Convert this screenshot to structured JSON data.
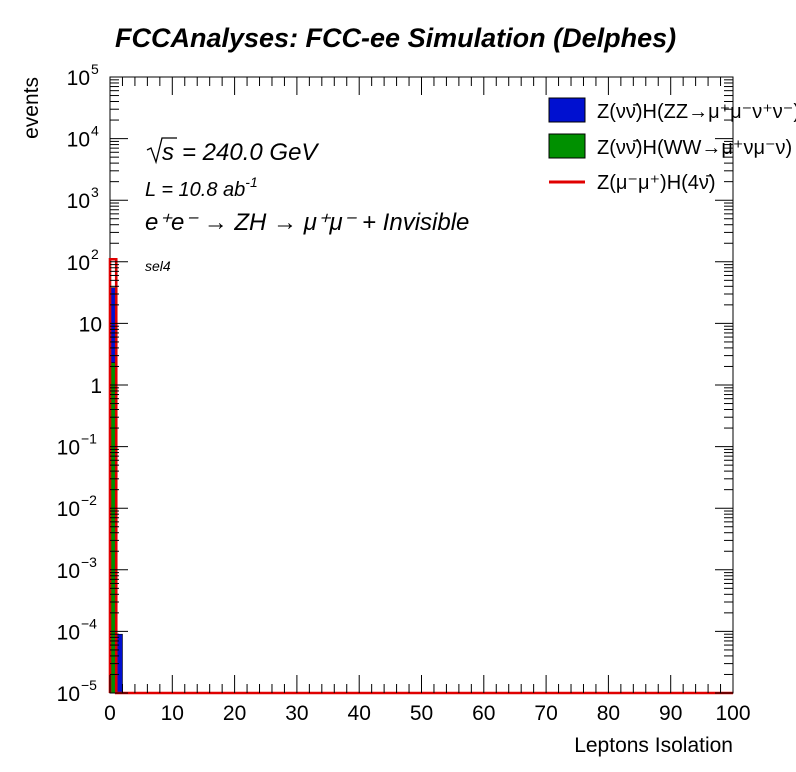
{
  "chart_data": {
    "type": "bar",
    "title": "FCCAnalyses: FCC-ee Simulation (Delphes)",
    "xlabel": "Leptons Isolation",
    "ylabel": "events",
    "xlim": [
      0,
      100
    ],
    "ylim": [
      1e-05,
      100000.0
    ],
    "yscale": "log",
    "x_ticks": [
      "0",
      "10",
      "20",
      "30",
      "40",
      "50",
      "60",
      "70",
      "80",
      "90",
      "100"
    ],
    "y_ticks": [
      {
        "value": 100000.0,
        "base": "10",
        "exp": "5"
      },
      {
        "value": 10000.0,
        "base": "10",
        "exp": "4"
      },
      {
        "value": 1000.0,
        "base": "10",
        "exp": "3"
      },
      {
        "value": 100.0,
        "base": "10",
        "exp": "2"
      },
      {
        "value": 10,
        "base": "10",
        "exp": ""
      },
      {
        "value": 1,
        "base": "1",
        "exp": ""
      },
      {
        "value": 0.1,
        "base": "10",
        "exp": "−1"
      },
      {
        "value": 0.01,
        "base": "10",
        "exp": "−2"
      },
      {
        "value": 0.001,
        "base": "10",
        "exp": "−3"
      },
      {
        "value": 0.0001,
        "base": "10",
        "exp": "−4"
      },
      {
        "value": 1e-05,
        "base": "10",
        "exp": "−5"
      }
    ],
    "series": [
      {
        "name": "Z(νν̄)H(ZZ→μ⁺μ⁻ν⁺ν⁻)",
        "style": "stack-fill",
        "color": "#0010d0",
        "bins": [
          {
            "x0": 0,
            "x1": 1,
            "y": 38
          },
          {
            "x0": 1,
            "x1": 2,
            "y": 9e-05
          }
        ]
      },
      {
        "name": "Z(νν̄)H(WW→μ⁺νμ⁻ν)",
        "style": "stack-fill",
        "color": "#009000",
        "bins": [
          {
            "x0": 0,
            "x1": 1,
            "y": 2.3
          }
        ]
      },
      {
        "name": "Z(μ⁻μ⁺)H(4ν̄)",
        "style": "line",
        "color": "#e00000",
        "bins": [
          {
            "x0": 0,
            "x1": 1,
            "y": 110
          }
        ]
      }
    ],
    "legend_position": "top-right",
    "annotations": {
      "sqrt_s": "= 240.0 GeV",
      "lumi": "L = 10.8 ab",
      "lumi_exp": "-1",
      "process": "e⁺e⁻ → ZH → μ⁺μ⁻ + Invisible",
      "selection": "sel4"
    }
  }
}
